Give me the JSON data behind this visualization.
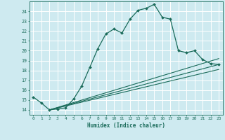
{
  "xlabel": "Humidex (Indice chaleur)",
  "bg_color": "#ceeaf0",
  "line_color": "#1a6b5a",
  "grid_color": "#ffffff",
  "xlim": [
    -0.5,
    23.5
  ],
  "ylim": [
    13.5,
    25.0
  ],
  "yticks": [
    14,
    15,
    16,
    17,
    18,
    19,
    20,
    21,
    22,
    23,
    24
  ],
  "xticks": [
    0,
    1,
    2,
    3,
    4,
    5,
    6,
    7,
    8,
    9,
    10,
    11,
    12,
    13,
    14,
    15,
    16,
    17,
    18,
    19,
    20,
    21,
    22,
    23
  ],
  "series_main": {
    "x": [
      0,
      1,
      2,
      3,
      4,
      5,
      6,
      7,
      8,
      9,
      10,
      11,
      12,
      13,
      14,
      15,
      16,
      17,
      18,
      19,
      20,
      21,
      22,
      23
    ],
    "y": [
      15.3,
      14.7,
      14.0,
      14.1,
      14.2,
      15.1,
      16.4,
      18.3,
      20.2,
      21.7,
      22.2,
      21.8,
      23.2,
      24.1,
      24.3,
      24.7,
      23.4,
      23.2,
      20.0,
      19.8,
      20.0,
      19.1,
      18.7,
      18.6
    ]
  },
  "series_lines": [
    {
      "x": [
        2,
        23
      ],
      "y": [
        14.0,
        19.2
      ]
    },
    {
      "x": [
        2,
        23
      ],
      "y": [
        14.0,
        18.6
      ]
    },
    {
      "x": [
        2,
        23
      ],
      "y": [
        14.0,
        18.1
      ]
    }
  ]
}
